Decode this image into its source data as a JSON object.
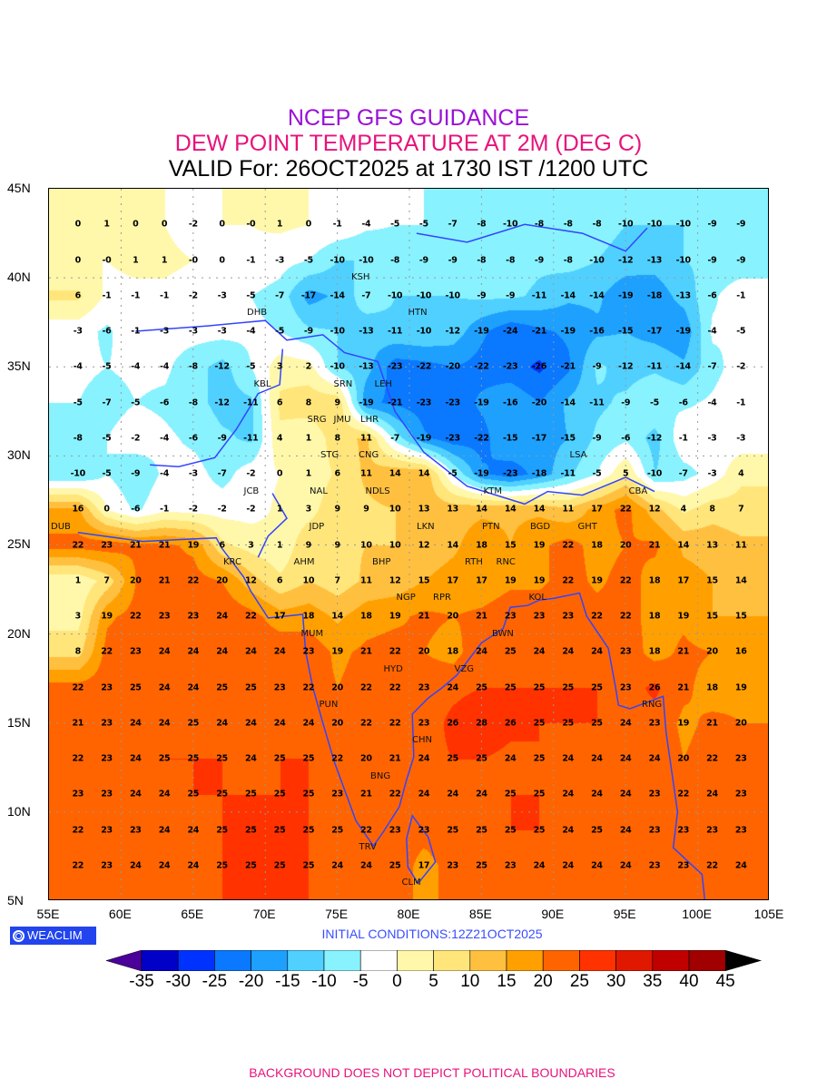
{
  "header": {
    "line1": "NCEP GFS GUIDANCE",
    "line2": "DEW POINT TEMPERATURE AT 2M (DEG C)",
    "line3": "VALID For: 26OCT2025 at 1730 IST /1200 UTC"
  },
  "axes": {
    "lat_labels": [
      "45N",
      "40N",
      "35N",
      "30N",
      "25N",
      "20N",
      "15N",
      "10N",
      "5N"
    ],
    "lon_labels": [
      "55E",
      "60E",
      "65E",
      "70E",
      "75E",
      "80E",
      "85E",
      "90E",
      "95E",
      "100E",
      "105E"
    ]
  },
  "logo": "WEACLIM",
  "initial_conditions": "INITIAL CONDITIONS:12Z21OCT2025",
  "footer": "BACKGROUND DOES NOT DEPICT POLITICAL BOUNDARIES",
  "colors": {
    "line1": "#9b10d8",
    "line2": "#e8127c",
    "coast": "#3344ff"
  },
  "colorbar": {
    "ticks": [
      "-35",
      "-30",
      "-25",
      "-20",
      "-15",
      "-10",
      "-5",
      "0",
      "5",
      "10",
      "15",
      "20",
      "25",
      "30",
      "35",
      "40",
      "45"
    ],
    "under": "#4a0099",
    "colors": [
      "#0000c8",
      "#0032ff",
      "#0a78ff",
      "#1ea0ff",
      "#50d0ff",
      "#88f2ff",
      "#ffffff",
      "#fff8aa",
      "#ffe57a",
      "#ffc040",
      "#ffa000",
      "#ff6400",
      "#ff3200",
      "#e01800",
      "#c00000",
      "#a00000"
    ],
    "over": "#000000"
  },
  "stations": [
    "KSH",
    "DHB",
    "HTN",
    "KBL",
    "SRN",
    "LEH",
    "SRG",
    "JMU",
    "LHR",
    "CNG",
    "STG",
    "JCB",
    "NAL",
    "NDLS",
    "LSA",
    "KTM",
    "CBA",
    "BGD",
    "GHT",
    "JDP",
    "LKN",
    "PTN",
    "DUB",
    "KRC",
    "RTH",
    "AHM",
    "BHP",
    "RNC",
    "KOL",
    "NGP",
    "RPR",
    "BWN",
    "MUM",
    "HYD",
    "VZG",
    "RNG",
    "PUN",
    "CHN",
    "BNG",
    "TRV",
    "CLM"
  ],
  "chart_data": {
    "type": "heatmap",
    "title": "DEW POINT TEMPERATURE AT 2M (DEG C)",
    "units": "deg C",
    "lon_range": [
      55,
      105
    ],
    "lat_range": [
      5,
      45
    ],
    "lons": [
      57,
      59,
      61,
      63,
      65,
      67,
      69,
      71,
      73,
      75,
      77,
      79,
      81,
      83,
      85,
      87,
      89,
      91,
      93,
      95,
      97,
      99,
      101,
      103
    ],
    "lats": [
      43,
      41,
      39,
      37,
      35,
      33,
      31,
      29,
      27,
      25,
      23,
      21,
      19,
      17,
      15,
      13,
      11,
      9,
      7
    ],
    "values": [
      [
        "0",
        "1",
        "0",
        "0",
        "-2",
        "0",
        "-0",
        "1",
        "0",
        "-1",
        "-4",
        "-5",
        "-5",
        "-7",
        "-8",
        "-10",
        "-8",
        "-8",
        "-8",
        "-10",
        "-10",
        "-10",
        "-9",
        "-9"
      ],
      [
        "0",
        "-0",
        "1",
        "1",
        "-0",
        "0",
        "-1",
        "-3",
        "-5",
        "-10",
        "-10",
        "-8",
        "-9",
        "-9",
        "-8",
        "-8",
        "-9",
        "-8",
        "-10",
        "-12",
        "-13",
        "-10",
        "-9",
        "-9"
      ],
      [
        "6",
        "-1",
        "-1",
        "-1",
        "-2",
        "-3",
        "-5",
        "-7",
        "-17",
        "-14",
        "-7",
        "-10",
        "-10",
        "-10",
        "-9",
        "-9",
        "-11",
        "-14",
        "-14",
        "-19",
        "-18",
        "-13",
        "-6",
        "-1"
      ],
      [
        "-3",
        "-6",
        "-1",
        "-3",
        "-3",
        "-3",
        "-4",
        "-5",
        "-9",
        "-10",
        "-13",
        "-11",
        "-10",
        "-12",
        "-19",
        "-24",
        "-21",
        "-19",
        "-16",
        "-15",
        "-17",
        "-19",
        "-4",
        "-5"
      ],
      [
        "-4",
        "-5",
        "-4",
        "-4",
        "-8",
        "-12",
        "-5",
        "3",
        "2",
        "-10",
        "-13",
        "-23",
        "-22",
        "-20",
        "-22",
        "-23",
        "-26",
        "-21",
        "-9",
        "-12",
        "-11",
        "-14",
        "-7",
        "-2"
      ],
      [
        "-5",
        "-7",
        "-5",
        "-6",
        "-8",
        "-12",
        "-11",
        "6",
        "8",
        "9",
        "-19",
        "-21",
        "-23",
        "-23",
        "-19",
        "-16",
        "-20",
        "-14",
        "-11",
        "-9",
        "-5",
        "-6",
        "-4",
        "-1"
      ],
      [
        "-8",
        "-5",
        "-2",
        "-4",
        "-6",
        "-9",
        "-11",
        "4",
        "1",
        "8",
        "11",
        "-7",
        "-19",
        "-23",
        "-22",
        "-15",
        "-17",
        "-15",
        "-9",
        "-6",
        "-12",
        "-1",
        "-3",
        "-3"
      ],
      [
        "-10",
        "-5",
        "-9",
        "-4",
        "-3",
        "-7",
        "-2",
        "0",
        "1",
        "6",
        "11",
        "14",
        "14",
        "-5",
        "-19",
        "-23",
        "-18",
        "-11",
        "-5",
        "5",
        "-10",
        "-7",
        "-3",
        "4"
      ],
      [
        "16",
        "0",
        "-6",
        "-1",
        "-2",
        "-2",
        "-2",
        "1",
        "3",
        "9",
        "9",
        "10",
        "13",
        "13",
        "14",
        "14",
        "14",
        "11",
        "17",
        "22",
        "12",
        "4",
        "8",
        "7"
      ],
      [
        "22",
        "23",
        "21",
        "21",
        "19",
        "6",
        "3",
        "1",
        "9",
        "9",
        "10",
        "10",
        "12",
        "14",
        "18",
        "15",
        "19",
        "22",
        "18",
        "20",
        "21",
        "14",
        "13",
        "11"
      ],
      [
        "1",
        "7",
        "20",
        "21",
        "22",
        "20",
        "12",
        "6",
        "10",
        "7",
        "11",
        "12",
        "15",
        "17",
        "17",
        "19",
        "19",
        "22",
        "19",
        "22",
        "18",
        "17",
        "15",
        "14"
      ],
      [
        "3",
        "19",
        "22",
        "23",
        "23",
        "24",
        "22",
        "17",
        "18",
        "14",
        "18",
        "19",
        "21",
        "20",
        "21",
        "23",
        "23",
        "23",
        "22",
        "22",
        "18",
        "19",
        "15",
        "15"
      ],
      [
        "8",
        "22",
        "23",
        "24",
        "24",
        "24",
        "24",
        "24",
        "23",
        "19",
        "21",
        "22",
        "20",
        "18",
        "24",
        "25",
        "24",
        "24",
        "24",
        "23",
        "18",
        "21",
        "20",
        "16"
      ],
      [
        "22",
        "23",
        "25",
        "24",
        "24",
        "25",
        "25",
        "23",
        "22",
        "20",
        "22",
        "22",
        "23",
        "24",
        "25",
        "25",
        "25",
        "25",
        "25",
        "23",
        "26",
        "21",
        "18",
        "19"
      ],
      [
        "21",
        "23",
        "24",
        "24",
        "25",
        "24",
        "24",
        "24",
        "24",
        "20",
        "22",
        "22",
        "23",
        "26",
        "28",
        "26",
        "25",
        "25",
        "25",
        "24",
        "23",
        "19",
        "21",
        "20"
      ],
      [
        "22",
        "23",
        "24",
        "25",
        "25",
        "25",
        "24",
        "25",
        "25",
        "22",
        "20",
        "21",
        "24",
        "25",
        "25",
        "24",
        "25",
        "24",
        "24",
        "24",
        "24",
        "20",
        "22",
        "23"
      ],
      [
        "23",
        "23",
        "24",
        "24",
        "25",
        "25",
        "25",
        "25",
        "25",
        "23",
        "21",
        "22",
        "24",
        "24",
        "24",
        "25",
        "25",
        "24",
        "24",
        "24",
        "23",
        "22",
        "24",
        "23"
      ],
      [
        "22",
        "23",
        "23",
        "24",
        "24",
        "25",
        "25",
        "25",
        "25",
        "25",
        "22",
        "23",
        "23",
        "25",
        "25",
        "25",
        "25",
        "24",
        "25",
        "24",
        "23",
        "23",
        "23",
        "23"
      ],
      [
        "22",
        "23",
        "24",
        "24",
        "24",
        "25",
        "25",
        "25",
        "25",
        "24",
        "24",
        "25",
        "17",
        "23",
        "25",
        "23",
        "24",
        "24",
        "24",
        "24",
        "23",
        "23",
        "22",
        "24"
      ]
    ]
  }
}
